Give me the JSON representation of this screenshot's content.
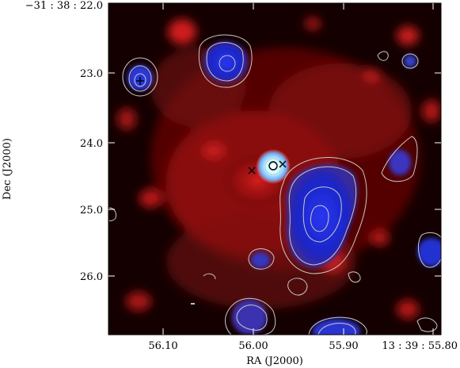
{
  "figure": {
    "xlabel": "RA (J2000)",
    "ylabel": "Dec (J2000)",
    "corner_label": "−31 : 38 : 22.0",
    "x_ticks": [
      "56.10",
      "56.00",
      "55.90",
      "13 : 39 : 55.80"
    ],
    "y_ticks": [
      "23.0",
      "24.0",
      "25.0",
      "26.0"
    ],
    "colors": {
      "background": "#000000",
      "diffuse_emission": "#c01818",
      "compact_emission": "#1b2bd6",
      "contours": "#c8c8c8",
      "central_source": "#c8ffff"
    },
    "markers": [
      "plus",
      "x",
      "x",
      "circle"
    ]
  }
}
